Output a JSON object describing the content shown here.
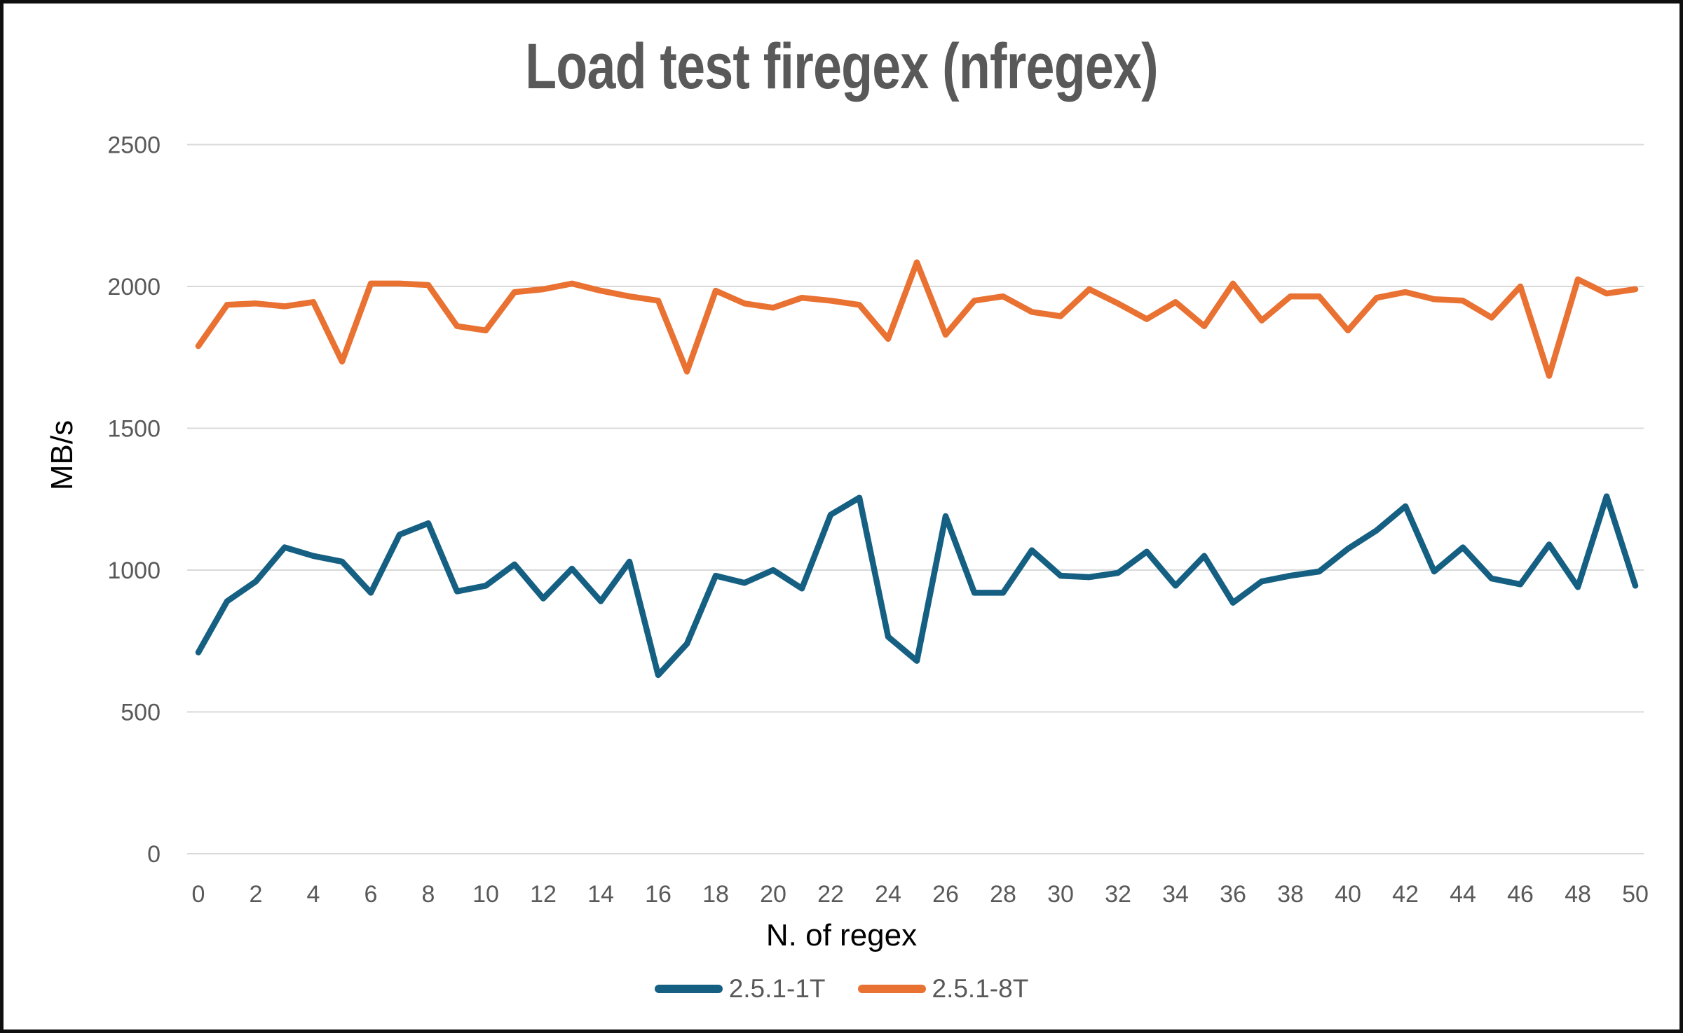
{
  "frame": {
    "background_color": "#ffffff",
    "border_color": "#0f0f0f"
  },
  "chart": {
    "title": "Load test firegex (nfregex)",
    "title_color": "#595959",
    "ylabel": "MB/s",
    "xlabel": "N. of regex",
    "axis_tick_color": "#595959",
    "axis_title_color": "#000000",
    "gridline_color": "#d9d9d9"
  },
  "legend": {
    "position": "bottom",
    "items": [
      {
        "label": "2.5.1-1T",
        "color": "#156082"
      },
      {
        "label": "2.5.1-8T",
        "color": "#E97132"
      }
    ]
  },
  "chart_data": {
    "type": "line",
    "title": "Load test firegex (nfregex)",
    "xlabel": "N. of regex",
    "ylabel": "MB/s",
    "ylim": [
      0,
      2500
    ],
    "yticks": [
      0,
      500,
      1000,
      1500,
      2000,
      2500
    ],
    "xticks": [
      0,
      2,
      4,
      6,
      8,
      10,
      12,
      14,
      16,
      18,
      20,
      22,
      24,
      26,
      28,
      30,
      32,
      34,
      36,
      38,
      40,
      42,
      44,
      46,
      48,
      50
    ],
    "grid": "horizontal-only",
    "legend_position": "bottom",
    "x": [
      0,
      1,
      2,
      3,
      4,
      5,
      6,
      7,
      8,
      9,
      10,
      11,
      12,
      13,
      14,
      15,
      16,
      17,
      18,
      19,
      20,
      21,
      22,
      23,
      24,
      25,
      26,
      27,
      28,
      29,
      30,
      31,
      32,
      33,
      34,
      35,
      36,
      37,
      38,
      39,
      40,
      41,
      42,
      43,
      44,
      45,
      46,
      47,
      48,
      49,
      50
    ],
    "series": [
      {
        "name": "2.5.1-1T",
        "color": "#156082",
        "values": [
          710,
          890,
          960,
          1080,
          1050,
          1030,
          920,
          1125,
          1165,
          925,
          945,
          1020,
          900,
          1005,
          890,
          1030,
          630,
          740,
          980,
          955,
          1000,
          935,
          1195,
          1255,
          765,
          680,
          1190,
          920,
          920,
          1070,
          980,
          975,
          990,
          1065,
          945,
          1050,
          885,
          960,
          980,
          995,
          1075,
          1140,
          1225,
          995,
          1080,
          970,
          950,
          1090,
          940,
          1260,
          945
        ]
      },
      {
        "name": "2.5.1-8T",
        "color": "#E97132",
        "values": [
          1790,
          1935,
          1940,
          1930,
          1945,
          1735,
          2010,
          2010,
          2005,
          1860,
          1845,
          1980,
          1990,
          2010,
          1985,
          1965,
          1950,
          1700,
          1985,
          1940,
          1925,
          1960,
          1950,
          1935,
          1815,
          2085,
          1830,
          1950,
          1965,
          1910,
          1895,
          1990,
          1940,
          1885,
          1945,
          1860,
          2010,
          1880,
          1965,
          1965,
          1845,
          1960,
          1980,
          1955,
          1950,
          1890,
          2000,
          1685,
          2025,
          1975,
          1990
        ]
      }
    ]
  }
}
